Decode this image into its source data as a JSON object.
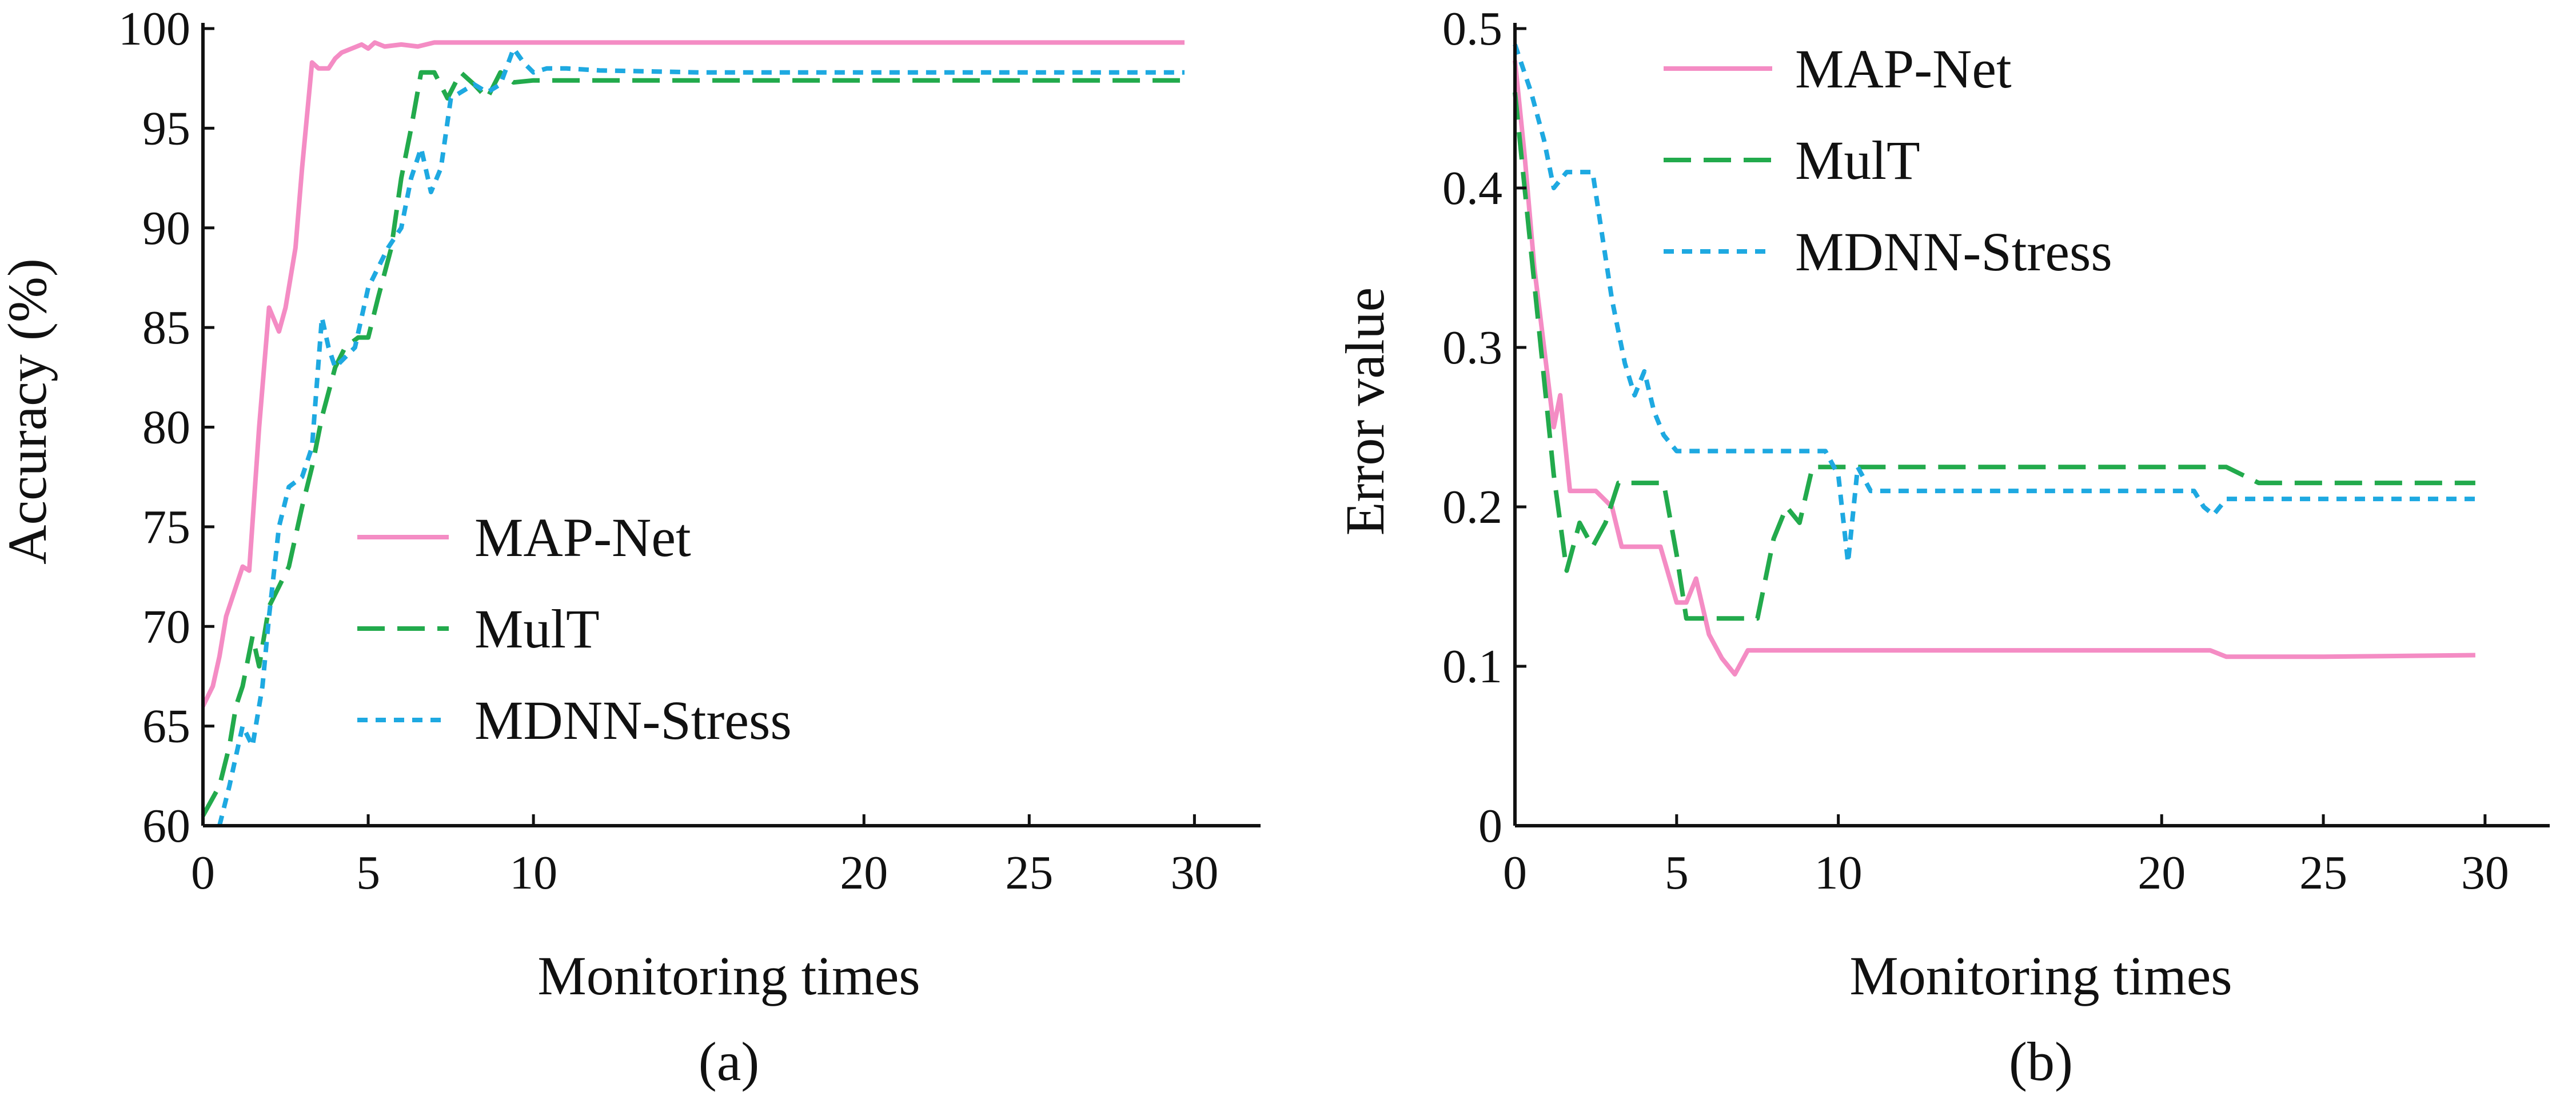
{
  "chart_data": [
    {
      "type": "line",
      "caption": "(a)",
      "xlabel": "Monitoring times",
      "ylabel": "Accuracy (%)",
      "xlim": [
        0,
        32
      ],
      "ylim": [
        60,
        100
      ],
      "xticks": [
        0,
        5,
        10,
        20,
        25,
        30
      ],
      "yticks": [
        60,
        65,
        70,
        75,
        80,
        85,
        90,
        95,
        100
      ],
      "grid": false,
      "legend_position": "center",
      "series": [
        {
          "name": "MAP-Net",
          "color": "#f48cc4",
          "dash": "solid",
          "x": [
            0,
            0.3,
            0.5,
            0.7,
            1.0,
            1.2,
            1.4,
            1.7,
            2.0,
            2.3,
            2.5,
            2.8,
            3.0,
            3.3,
            3.5,
            3.8,
            4.0,
            4.2,
            4.5,
            4.8,
            5.0,
            5.2,
            5.5,
            6.0,
            6.5,
            7.0,
            8.0,
            10.0,
            15.0,
            20.0,
            25.0,
            29.7
          ],
          "y": [
            66,
            67,
            68.5,
            70.5,
            72,
            73,
            72.8,
            80,
            86,
            84.8,
            86,
            89,
            93,
            98.3,
            98,
            98,
            98.5,
            98.8,
            99,
            99.2,
            99,
            99.3,
            99.1,
            99.2,
            99.1,
            99.3,
            99.3,
            99.3,
            99.3,
            99.3,
            99.3,
            99.3
          ]
        },
        {
          "name": "MulT",
          "color": "#22aa4c",
          "dash": "dashed",
          "x": [
            0,
            0.5,
            0.8,
            1.0,
            1.2,
            1.5,
            1.7,
            2.0,
            2.3,
            2.6,
            3.0,
            3.3,
            3.6,
            4.0,
            4.3,
            4.7,
            5.0,
            5.3,
            5.7,
            6.0,
            6.3,
            6.6,
            7.0,
            7.4,
            7.8,
            8.2,
            8.6,
            9.0,
            9.4,
            10.0,
            15.0,
            20.0,
            25.0,
            29.7
          ],
          "y": [
            60.5,
            62,
            64,
            66,
            67,
            69.5,
            68,
            71,
            72,
            73,
            76,
            78,
            80.5,
            83,
            84,
            84.5,
            84.5,
            86.5,
            89,
            92.5,
            95,
            97.8,
            97.8,
            96.5,
            97.8,
            97.2,
            96.5,
            97.8,
            97.3,
            97.4,
            97.4,
            97.4,
            97.4,
            97.4
          ]
        },
        {
          "name": "MDNN-Stress",
          "color": "#1ea9e1",
          "dash": "dotted",
          "x": [
            0.5,
            0.8,
            1.0,
            1.2,
            1.5,
            1.8,
            2.0,
            2.3,
            2.6,
            3.0,
            3.3,
            3.6,
            3.8,
            4.0,
            4.3,
            4.6,
            5.0,
            5.3,
            5.6,
            6.0,
            6.3,
            6.6,
            6.9,
            7.2,
            7.5,
            7.8,
            8.2,
            8.6,
            9.0,
            9.4,
            9.7,
            10.0,
            10.4,
            11.0,
            12.0,
            15.0,
            20.0,
            25.0,
            29.7
          ],
          "y": [
            60,
            62,
            63.5,
            65,
            64,
            67,
            70.5,
            75,
            77,
            77.5,
            79,
            85.5,
            84,
            83,
            83.5,
            84,
            87,
            88,
            89,
            90,
            92.5,
            94,
            91.8,
            93,
            96.5,
            96.8,
            97.2,
            96.8,
            97.2,
            99,
            98.3,
            97.8,
            98,
            98,
            97.9,
            97.8,
            97.8,
            97.8,
            97.8
          ]
        }
      ]
    },
    {
      "type": "line",
      "caption": "(b)",
      "xlabel": "Monitoring times",
      "ylabel": "Error value",
      "xlim": [
        0,
        32
      ],
      "ylim": [
        0,
        0.5
      ],
      "xticks": [
        0,
        5,
        10,
        20,
        25,
        30
      ],
      "yticks": [
        0,
        0.1,
        0.2,
        0.3,
        0.4,
        0.5
      ],
      "ytick_labels": [
        "0",
        "0.1",
        "0.2",
        "0.3",
        "0.4",
        "0.5"
      ],
      "grid": false,
      "legend_position": "top-center",
      "series": [
        {
          "name": "MAP-Net",
          "color": "#f48cc4",
          "dash": "solid",
          "x": [
            0,
            0.3,
            0.6,
            0.9,
            1.2,
            1.4,
            1.7,
            2.0,
            2.5,
            3.0,
            3.3,
            3.6,
            4.0,
            4.5,
            5.0,
            5.3,
            5.6,
            6.0,
            6.4,
            6.8,
            7.2,
            8.0,
            10.0,
            15.0,
            20.0,
            21.5,
            22.0,
            25.0,
            29.7
          ],
          "y": [
            0.48,
            0.42,
            0.35,
            0.3,
            0.25,
            0.27,
            0.21,
            0.21,
            0.21,
            0.2,
            0.175,
            0.175,
            0.175,
            0.175,
            0.14,
            0.14,
            0.155,
            0.12,
            0.105,
            0.095,
            0.11,
            0.11,
            0.11,
            0.11,
            0.11,
            0.11,
            0.106,
            0.106,
            0.107
          ]
        },
        {
          "name": "MulT",
          "color": "#22aa4c",
          "dash": "dashed",
          "x": [
            0,
            0.4,
            0.8,
            1.2,
            1.6,
            2.0,
            2.4,
            2.8,
            3.2,
            3.6,
            4.0,
            4.6,
            5.0,
            5.3,
            5.6,
            6.0,
            6.5,
            7.0,
            7.5,
            8.0,
            8.4,
            8.8,
            9.2,
            9.6,
            10.0,
            15.0,
            20.0,
            22.0,
            22.5,
            23.0,
            25.0,
            29.7
          ],
          "y": [
            0.46,
            0.38,
            0.3,
            0.22,
            0.16,
            0.19,
            0.175,
            0.19,
            0.215,
            0.215,
            0.215,
            0.215,
            0.17,
            0.13,
            0.13,
            0.13,
            0.13,
            0.13,
            0.13,
            0.18,
            0.2,
            0.19,
            0.225,
            0.225,
            0.225,
            0.225,
            0.225,
            0.225,
            0.22,
            0.215,
            0.215,
            0.215
          ]
        },
        {
          "name": "MDNN-Stress",
          "color": "#1ea9e1",
          "dash": "dotted",
          "x": [
            0,
            0.5,
            0.9,
            1.2,
            1.6,
            2.0,
            2.4,
            2.7,
            3.0,
            3.4,
            3.7,
            4.0,
            4.3,
            4.6,
            5.0,
            6.0,
            7.0,
            8.0,
            9.0,
            9.6,
            10.0,
            10.3,
            10.6,
            11.0,
            12.0,
            15.0,
            20.0,
            21.0,
            21.3,
            21.6,
            22.0,
            25.0,
            29.7
          ],
          "y": [
            0.49,
            0.46,
            0.43,
            0.4,
            0.41,
            0.41,
            0.41,
            0.37,
            0.33,
            0.29,
            0.27,
            0.285,
            0.26,
            0.245,
            0.235,
            0.235,
            0.235,
            0.235,
            0.235,
            0.235,
            0.22,
            0.165,
            0.225,
            0.21,
            0.21,
            0.21,
            0.21,
            0.21,
            0.2,
            0.195,
            0.205,
            0.205,
            0.205
          ]
        }
      ]
    }
  ]
}
